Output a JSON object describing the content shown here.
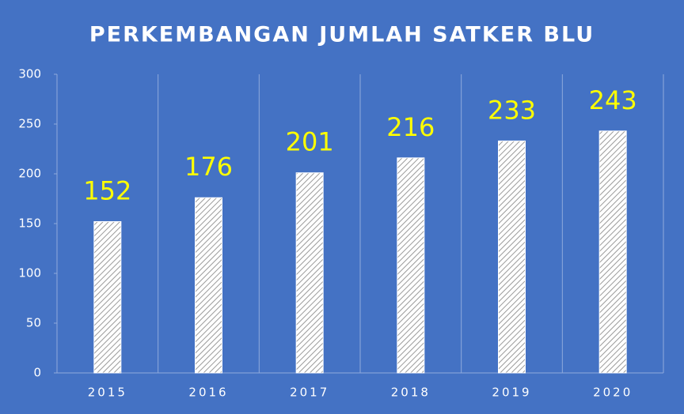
{
  "chart_data": {
    "type": "bar",
    "title": "PERKEMBANGAN JUMLAH SATKER BLU",
    "categories": [
      "2015",
      "2016",
      "2017",
      "2018",
      "2019",
      "2020"
    ],
    "values": [
      152,
      176,
      201,
      216,
      233,
      243
    ],
    "color": "#ffffff",
    "label_color": "#ffff00",
    "ylim": [
      0,
      300
    ],
    "yticks": [
      0,
      50,
      100,
      150,
      200,
      250,
      300
    ]
  }
}
